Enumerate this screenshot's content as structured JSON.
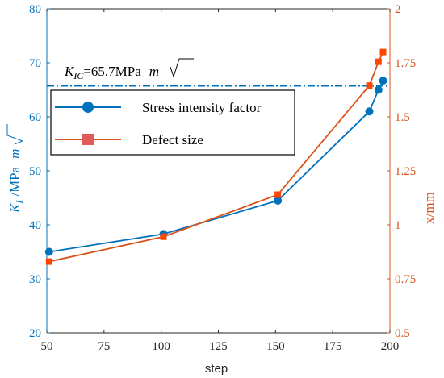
{
  "chart_data": {
    "type": "line",
    "xlabel": "step",
    "x_ticks": [
      "50",
      "75",
      "100",
      "125",
      "150",
      "175",
      "200"
    ],
    "xlim": [
      50,
      200
    ],
    "y_left": {
      "label_main": "K",
      "label_sub": "I",
      "label_unit": "/MPa",
      "label_root": "m",
      "ylim": [
        20,
        80
      ],
      "ticks": [
        "20",
        "30",
        "40",
        "50",
        "60",
        "70",
        "80"
      ],
      "color": "#0072BD"
    },
    "y_right": {
      "label": "x/mm",
      "ylim": [
        0.5,
        2.0
      ],
      "ticks": [
        "0.5",
        "0.75",
        "1",
        "1.25",
        "1.5",
        "1.75",
        "2"
      ],
      "color": "#D95319"
    },
    "series": [
      {
        "name": "Stress intensity factor",
        "axis": "left",
        "marker": "circle",
        "color": "#0072BD",
        "x": [
          51,
          101,
          151,
          191,
          195,
          197
        ],
        "y": [
          35.0,
          38.3,
          44.5,
          61.0,
          65.0,
          66.7
        ]
      },
      {
        "name": "Defect size",
        "axis": "right",
        "marker": "square",
        "color": "#D95319",
        "x": [
          51,
          101,
          151,
          191,
          195,
          197
        ],
        "y": [
          0.83,
          0.945,
          1.14,
          1.645,
          1.755,
          1.8
        ]
      }
    ],
    "threshold": {
      "value": 65.7,
      "axis": "left",
      "label_main": "K",
      "label_sub": "IC",
      "label_value": "=65.7MPa",
      "label_root": "m",
      "style": "dash-dot",
      "color": "#0072BD"
    },
    "legend_position": "upper-left",
    "grid": false
  }
}
